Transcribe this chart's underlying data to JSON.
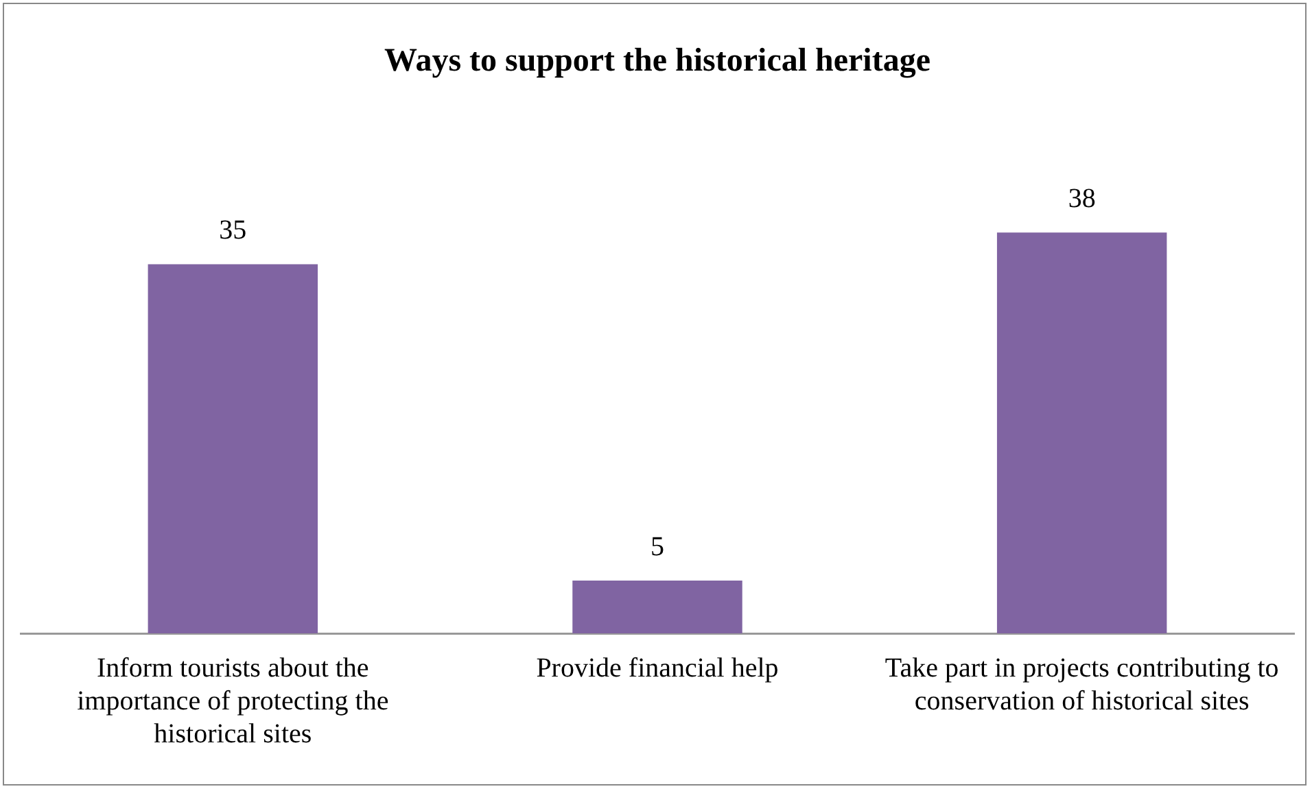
{
  "chart_data": {
    "type": "bar",
    "title": "Ways to support the historical heritage",
    "categories": [
      "Inform tourists about the importance of protecting the historical sites",
      "Provide financial help",
      "Take part in projects contributing to conservation of historical sites"
    ],
    "values": [
      35,
      5,
      38
    ],
    "color": "#8064a2",
    "data_labels": true,
    "grid": false,
    "legend": false
  }
}
